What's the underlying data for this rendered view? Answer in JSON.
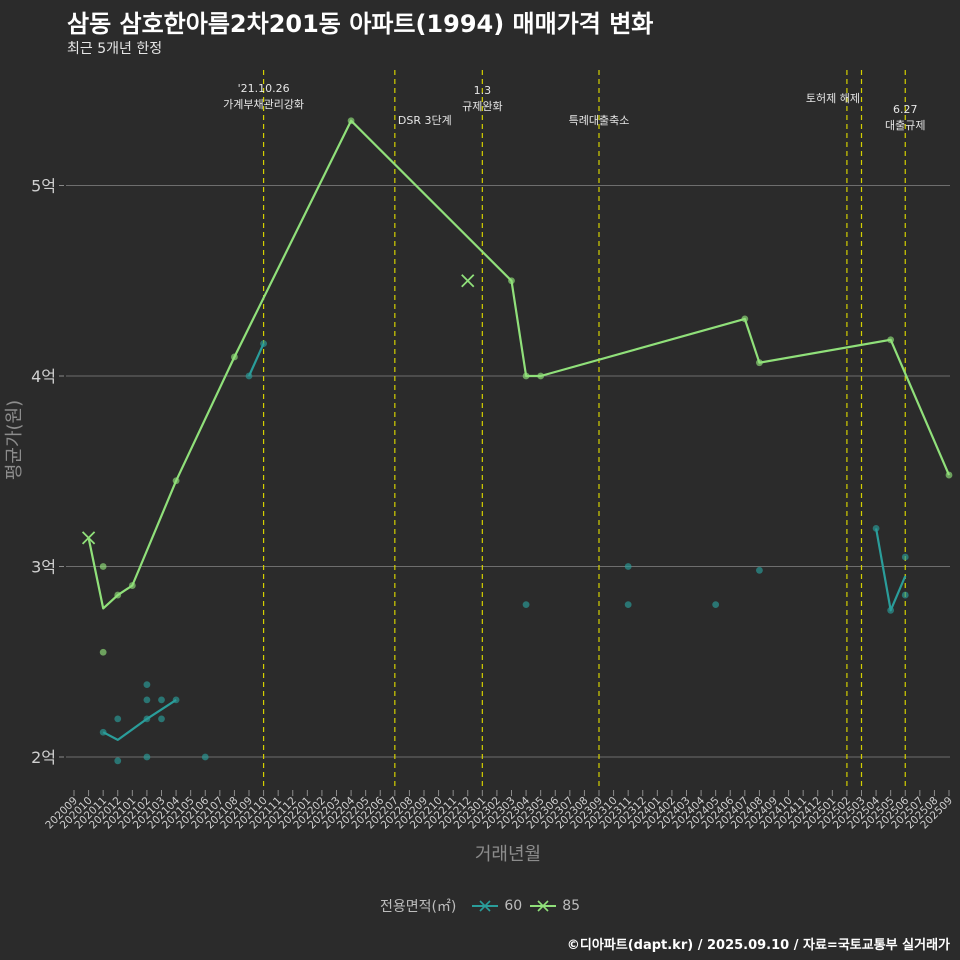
{
  "header": {
    "title": "삼동 삼호한아름2차201동 아파트(1994) 매매가격 변화",
    "subtitle": "최근 5개년 한정"
  },
  "footer": {
    "credit": "©디아파트(dapt.kr) / 2025.09.10 / 자료=국토교통부 실거래가"
  },
  "colors": {
    "background": "#2b2b2b",
    "series_60": "#2a9d9a",
    "series_85": "#90e07a",
    "event_line": "#d4d000",
    "grid": "#6e6e6e"
  },
  "chart_data": {
    "type": "line",
    "xlabel": "거래년월",
    "ylabel": "평균가(원)",
    "ylim": [
      1.83,
      5.9
    ],
    "y_ticks": [
      {
        "value": 2,
        "label": "2억"
      },
      {
        "value": 3,
        "label": "3억"
      },
      {
        "value": 4,
        "label": "4억"
      },
      {
        "value": 5,
        "label": "5억"
      }
    ],
    "x_ticks": [
      "202009",
      "202010",
      "202011",
      "202012",
      "202101",
      "202102",
      "202103",
      "202104",
      "202105",
      "202106",
      "202107",
      "202108",
      "202109",
      "202110",
      "202111",
      "202112",
      "202201",
      "202202",
      "202203",
      "202204",
      "202205",
      "202206",
      "202207",
      "202208",
      "202209",
      "202210",
      "202211",
      "202212",
      "202301",
      "202302",
      "202303",
      "202304",
      "202305",
      "202306",
      "202307",
      "202308",
      "202309",
      "202310",
      "202311",
      "202312",
      "202401",
      "202402",
      "202403",
      "202404",
      "202405",
      "202406",
      "202407",
      "202408",
      "202409",
      "202410",
      "202411",
      "202412",
      "202501",
      "202502",
      "202503",
      "202504",
      "202505",
      "202506",
      "202507",
      "202508",
      "202509"
    ],
    "legend": {
      "title": "전용면적(㎡)",
      "placement": "bottom",
      "items": [
        "60",
        "85"
      ]
    },
    "events": [
      {
        "month": "202110",
        "label": "'21.10.26\n가계부채관리강화"
      },
      {
        "month": "202207",
        "label": "DSR 3단계"
      },
      {
        "month": "202301",
        "label": "1.3\n규제완화"
      },
      {
        "month": "202309",
        "label": "특례대출축소"
      },
      {
        "month": "202502",
        "label": "토허제 해제"
      },
      {
        "month": "202503",
        "label": ""
      },
      {
        "month": "202506",
        "label": "6.27\n대출규제"
      }
    ],
    "series": [
      {
        "name": "60",
        "line_segments": [
          [
            [
              "202011",
              2.13
            ],
            [
              "202012",
              2.09
            ],
            [
              "202102",
              2.2
            ],
            [
              "202103",
              2.25
            ],
            [
              "202104",
              2.3
            ]
          ],
          [
            [
              "202109",
              4.0
            ],
            [
              "202110",
              4.17
            ]
          ],
          [
            [
              "202504",
              3.2
            ],
            [
              "202505",
              2.77
            ],
            [
              "202506",
              2.95
            ]
          ]
        ],
        "points": [
          [
            "202011",
            2.13
          ],
          [
            "202012",
            1.98
          ],
          [
            "202012",
            2.2
          ],
          [
            "202102",
            2.0
          ],
          [
            "202102",
            2.2
          ],
          [
            "202102",
            2.3
          ],
          [
            "202102",
            2.38
          ],
          [
            "202103",
            2.2
          ],
          [
            "202103",
            2.3
          ],
          [
            "202104",
            2.3
          ],
          [
            "202106",
            2.0
          ],
          [
            "202109",
            4.0
          ],
          [
            "202110",
            4.17
          ],
          [
            "202304",
            2.8
          ],
          [
            "202311",
            3.0
          ],
          [
            "202311",
            2.8
          ],
          [
            "202405",
            2.8
          ],
          [
            "202408",
            2.98
          ],
          [
            "202504",
            3.2
          ],
          [
            "202505",
            2.77
          ],
          [
            "202506",
            3.05
          ],
          [
            "202506",
            2.85
          ]
        ],
        "cross_points": []
      },
      {
        "name": "85",
        "line_segments": [
          [
            [
              "202010",
              3.15
            ],
            [
              "202011",
              2.78
            ],
            [
              "202012",
              2.85
            ],
            [
              "202101",
              2.9
            ],
            [
              "202104",
              3.45
            ],
            [
              "202108",
              4.1
            ],
            [
              "202204",
              5.34
            ],
            [
              "202303",
              4.5
            ],
            [
              "202304",
              4.0
            ],
            [
              "202305",
              4.0
            ],
            [
              "202407",
              4.3
            ],
            [
              "202408",
              4.07
            ],
            [
              "202505",
              4.19
            ],
            [
              "202509",
              3.48
            ]
          ]
        ],
        "points": [
          [
            "202011",
            3.0
          ],
          [
            "202011",
            2.55
          ],
          [
            "202012",
            2.85
          ],
          [
            "202101",
            2.9
          ],
          [
            "202104",
            3.45
          ],
          [
            "202108",
            4.1
          ],
          [
            "202204",
            5.34
          ],
          [
            "202303",
            4.5
          ],
          [
            "202304",
            4.0
          ],
          [
            "202305",
            4.0
          ],
          [
            "202407",
            4.3
          ],
          [
            "202408",
            4.07
          ],
          [
            "202505",
            4.19
          ],
          [
            "202509",
            3.48
          ]
        ],
        "cross_points": [
          [
            "202010",
            3.15
          ],
          [
            "202212",
            4.5
          ]
        ]
      }
    ]
  }
}
